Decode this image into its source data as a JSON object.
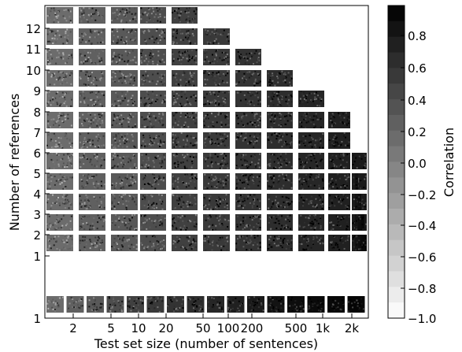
{
  "chart_data": {
    "type": "heatmap",
    "xlabel": "Test set size (number of sentences)",
    "ylabel": "Number of references",
    "x_ticks": [
      "2",
      "5",
      "10",
      "20",
      "50",
      "100",
      "200",
      "500",
      "1k",
      "2k"
    ],
    "y_ticks": [
      "1",
      "1",
      "2",
      "3",
      "4",
      "5",
      "6",
      "7",
      "8",
      "9",
      "10",
      "11",
      "12"
    ],
    "colorbar": {
      "label": "Correlation",
      "ticks": [
        "0.8",
        "0.6",
        "0.4",
        "0.2",
        "0.0",
        "−0.2",
        "−0.4",
        "−0.6",
        "−0.8",
        "−1.0"
      ],
      "range": [
        -1.0,
        1.0
      ]
    },
    "rows": [
      {
        "refs": "12",
        "cells": 5
      },
      {
        "refs": "11",
        "cells": 6
      },
      {
        "refs": "10",
        "cells": 7
      },
      {
        "refs": "9",
        "cells": 8
      },
      {
        "refs": "8",
        "cells": 9
      },
      {
        "refs": "7",
        "cells": 10
      },
      {
        "refs": "6",
        "cells": 10
      },
      {
        "refs": "5",
        "cells": 11
      },
      {
        "refs": "4",
        "cells": 12
      },
      {
        "refs": "3",
        "cells": 13
      },
      {
        "refs": "2",
        "cells": 14
      },
      {
        "refs": "1",
        "cells": 15
      },
      {
        "refs": "1",
        "cells": 16
      }
    ],
    "cell_mean_correlation": [
      0.15,
      0.25,
      0.3,
      0.4,
      0.5,
      0.55,
      0.6,
      0.65,
      0.7,
      0.75,
      0.8,
      0.85,
      0.9,
      0.92,
      0.94,
      0.96
    ]
  }
}
